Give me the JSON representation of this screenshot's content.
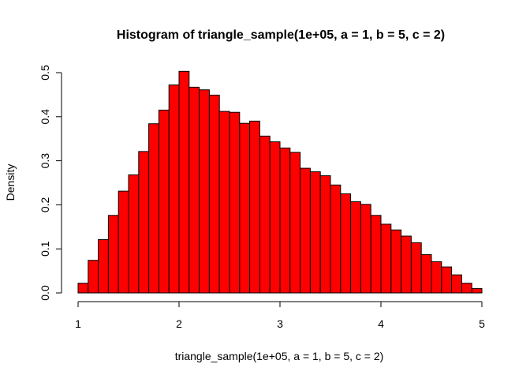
{
  "chart_data": {
    "type": "bar",
    "title": "Histogram of triangle_sample(1e+05, a = 1, b = 5, c = 2)",
    "xlabel": "triangle_sample(1e+05, a = 1, b = 5, c = 2)",
    "ylabel": "Density",
    "xlim": [
      1,
      5
    ],
    "ylim": [
      0,
      0.5
    ],
    "x_ticks": [
      "1",
      "2",
      "3",
      "4",
      "5"
    ],
    "y_ticks": [
      "0.0",
      "0.1",
      "0.2",
      "0.3",
      "0.4",
      "0.5"
    ],
    "bin_width": 0.1,
    "bin_start": 1.0,
    "values": [
      0.022,
      0.074,
      0.121,
      0.176,
      0.231,
      0.268,
      0.321,
      0.384,
      0.415,
      0.472,
      0.503,
      0.467,
      0.461,
      0.449,
      0.412,
      0.41,
      0.385,
      0.39,
      0.356,
      0.343,
      0.329,
      0.319,
      0.283,
      0.275,
      0.266,
      0.245,
      0.225,
      0.207,
      0.201,
      0.176,
      0.156,
      0.143,
      0.129,
      0.114,
      0.087,
      0.071,
      0.059,
      0.041,
      0.022,
      0.01
    ],
    "bar_color": "#FF0000",
    "grid": false
  }
}
